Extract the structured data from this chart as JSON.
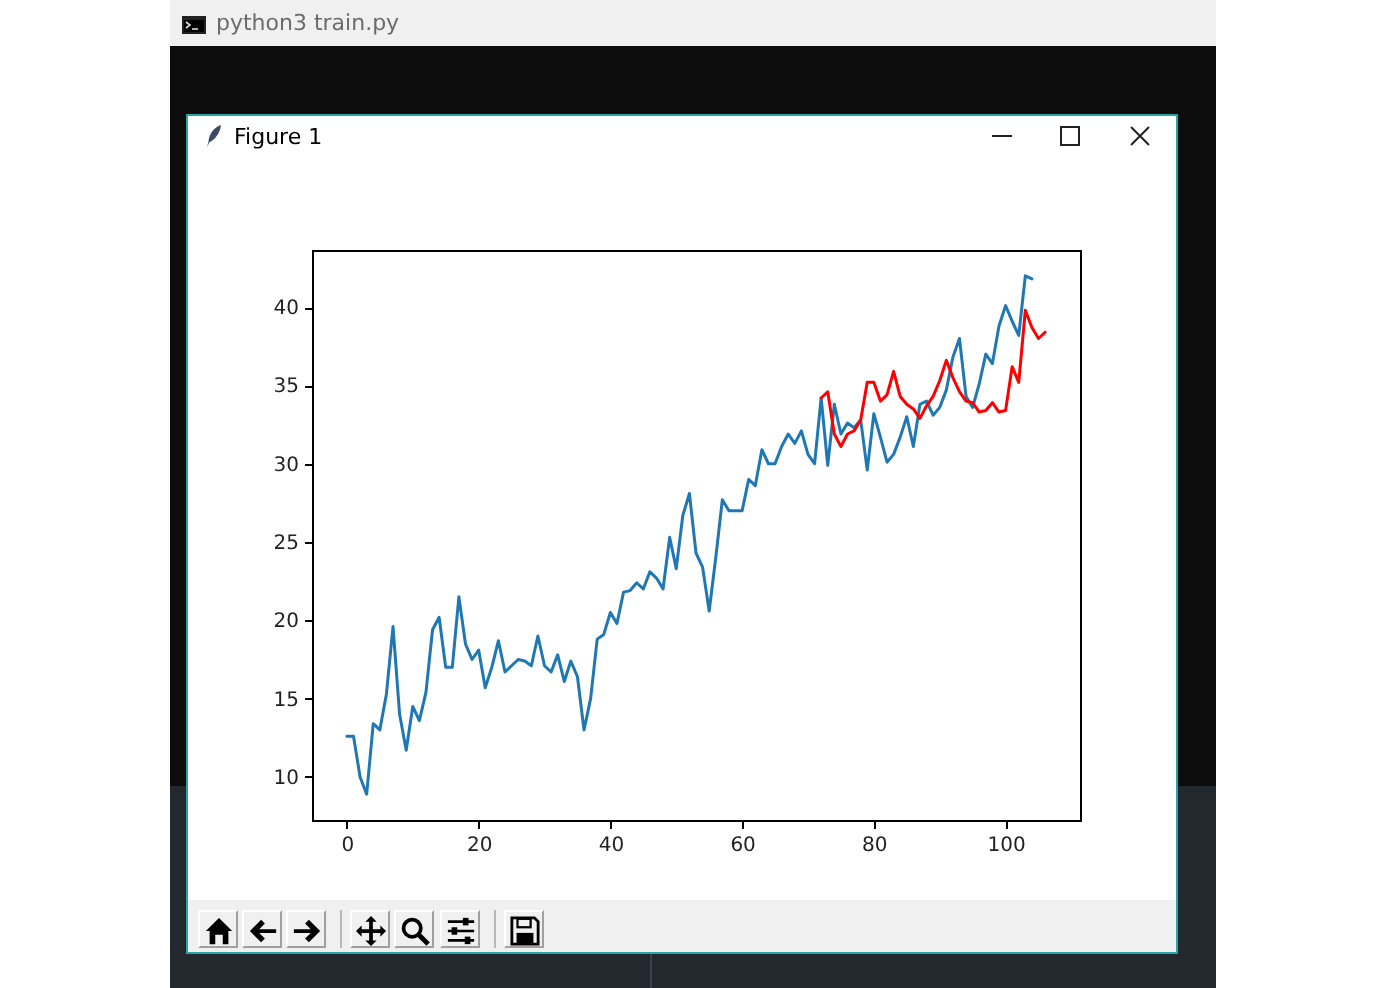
{
  "chart_data": {
    "type": "line",
    "annotations": [
      "python3 train.py",
      "Figure 1"
    ],
    "xlim": [
      -5.3,
      111.3
    ],
    "ylim": [
      7.25,
      43.65
    ],
    "xticks": [
      0,
      20,
      40,
      60,
      80,
      100
    ],
    "yticks": [
      10,
      15,
      20,
      25,
      30,
      35,
      40
    ],
    "series": [
      {
        "color": "#1f77b4",
        "x": [
          0,
          1,
          2,
          3,
          4,
          5,
          6,
          7,
          8,
          9,
          10,
          11,
          12,
          13,
          14,
          15,
          16,
          17,
          18,
          19,
          20,
          21,
          22,
          23,
          24,
          25,
          26,
          27,
          28,
          29,
          30,
          31,
          32,
          33,
          34,
          35,
          36,
          37,
          38,
          39,
          40,
          41,
          42,
          43,
          44,
          45,
          46,
          47,
          48,
          49,
          50,
          51,
          52,
          53,
          54,
          55,
          56,
          57,
          58,
          59,
          60,
          61,
          62,
          63,
          64,
          65,
          66,
          67,
          68,
          69,
          70,
          71,
          72,
          73,
          74,
          75,
          76,
          77,
          78,
          79,
          80,
          81,
          82,
          83,
          84,
          85,
          86,
          87,
          88,
          89,
          90,
          91,
          92,
          93,
          94,
          95,
          96,
          97,
          98,
          99,
          100,
          101,
          102,
          103,
          104
        ],
        "values": [
          12.6,
          12.6,
          10.0,
          8.9,
          13.4,
          13.0,
          15.3,
          19.6,
          14.0,
          11.7,
          14.5,
          13.6,
          15.4,
          19.4,
          20.2,
          17.0,
          17.0,
          21.5,
          18.5,
          17.5,
          18.1,
          15.7,
          17.0,
          18.7,
          16.7,
          17.1,
          17.5,
          17.4,
          17.1,
          19.0,
          17.1,
          16.7,
          17.8,
          16.1,
          17.4,
          16.4,
          13.0,
          15.0,
          18.8,
          19.1,
          20.5,
          19.8,
          21.8,
          21.9,
          22.4,
          22.0,
          23.1,
          22.7,
          22.0,
          25.3,
          23.3,
          26.7,
          28.1,
          24.3,
          23.4,
          20.6,
          24.0,
          27.7,
          27.0,
          27.0,
          27.0,
          29.0,
          28.6,
          30.9,
          30.0,
          30.0,
          31.1,
          31.9,
          31.3,
          32.1,
          30.6,
          30.0,
          34.2,
          29.9,
          33.8,
          31.9,
          32.6,
          32.3,
          32.8,
          29.6,
          33.2,
          31.7,
          30.1,
          30.6,
          31.7,
          33.0,
          31.1,
          33.8,
          34.0,
          33.1,
          33.6,
          34.7,
          36.8,
          38.0,
          34.3,
          33.6,
          35.1,
          37.0,
          36.4,
          38.8,
          40.1,
          39.1,
          38.2,
          42.0,
          41.8
        ]
      },
      {
        "color": "#ff0000",
        "x": [
          72,
          73,
          74,
          75,
          76,
          77,
          78,
          79,
          80,
          81,
          82,
          83,
          84,
          85,
          86,
          87,
          88,
          89,
          90,
          91,
          92,
          93,
          94,
          95,
          96,
          97,
          98,
          99,
          100,
          101,
          102,
          103,
          104,
          105,
          106
        ],
        "values": [
          34.2,
          34.6,
          31.9,
          31.1,
          31.9,
          32.1,
          32.8,
          35.2,
          35.2,
          34.0,
          34.4,
          35.9,
          34.3,
          33.8,
          33.5,
          32.9,
          33.7,
          34.3,
          35.3,
          36.6,
          35.5,
          34.6,
          34.0,
          33.9,
          33.3,
          33.4,
          33.9,
          33.3,
          33.4,
          36.2,
          35.2,
          39.8,
          38.7,
          38.0,
          38.4
        ]
      }
    ]
  }
}
